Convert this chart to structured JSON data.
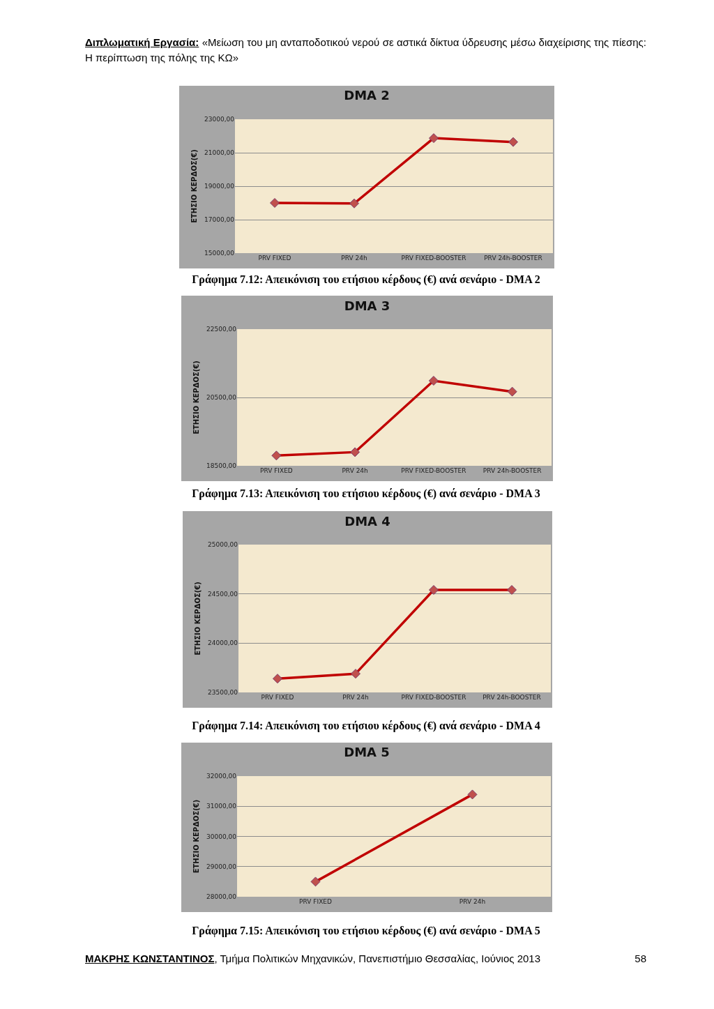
{
  "chart_data": [
    {
      "type": "line",
      "title": "DMA 2",
      "ylabel": "ΕΤΗΣΙΟ ΚΕΡΔΟΣ(€)",
      "categories": [
        "PRV FIXED",
        "PRV 24h",
        "PRV FIXED-BOOSTER",
        "PRV 24h-BOOSTER"
      ],
      "series": [
        {
          "color": "#c00000",
          "values": [
            18000,
            17970,
            21870,
            21640
          ]
        }
      ],
      "ylim": [
        15000,
        23000
      ],
      "yticks": [
        {
          "value": 15000,
          "label": "15000,00"
        },
        {
          "value": 17000,
          "label": "17000,00"
        },
        {
          "value": 19000,
          "label": "19000,00"
        },
        {
          "value": 21000,
          "label": "21000,00"
        },
        {
          "value": 23000,
          "label": "23000,00"
        }
      ],
      "grid": "y",
      "marker": "diamond",
      "line_style": "solid",
      "annotations": [
        "Διπλωματική Εργασία:",
        "«Μείωση του μη ανταποδοτικού νερού σε αστικά δίκτυα ύδρευσης μέσω διαχείρισης της πίεσης: Η περίπτωση της πόλης της ΚΩ»",
        "Γράφημα 7.12: Απεικόνιση του ετήσιου κέρδους (€) ανά σενάριο - DMA 2"
      ]
    },
    {
      "type": "line",
      "title": "DMA 3",
      "ylabel": "ΕΤΗΣΙΟ ΚΕΡΔΟΣ(€)",
      "categories": [
        "PRV FIXED",
        "PRV 24h",
        "PRV FIXED-BOOSTER",
        "PRV 24h-BOOSTER"
      ],
      "series": [
        {
          "color": "#c00000",
          "values": [
            18800,
            18900,
            20990,
            20670
          ]
        }
      ],
      "ylim": [
        18500,
        22500
      ],
      "yticks": [
        {
          "value": 18500,
          "label": "18500,00"
        },
        {
          "value": 20500,
          "label": "20500,00"
        },
        {
          "value": 22500,
          "label": "22500,00"
        }
      ],
      "grid": "y",
      "marker": "diamond",
      "line_style": "solid",
      "annotations": [
        "Γράφημα 7.13: Απεικόνιση του ετήσιου κέρδους (€) ανά σενάριο - DMA 3"
      ]
    },
    {
      "type": "line",
      "title": "DMA 4",
      "ylabel": "ΕΤΗΣΙΟ ΚΕΡΔΟΣ(€)",
      "categories": [
        "PRV FIXED",
        "PRV 24h",
        "PRV FIXED-BOOSTER",
        "PRV 24h-BOOSTER"
      ],
      "series": [
        {
          "color": "#c00000",
          "values": [
            23640,
            23690,
            24540,
            24540
          ]
        }
      ],
      "ylim": [
        23500,
        25000
      ],
      "yticks": [
        {
          "value": 23500,
          "label": "23500,00"
        },
        {
          "value": 24000,
          "label": "24000,00"
        },
        {
          "value": 24500,
          "label": "24500,00"
        },
        {
          "value": 25000,
          "label": "25000,00"
        }
      ],
      "grid": "y",
      "marker": "diamond",
      "line_style": "solid",
      "annotations": [
        "Γράφημα 7.14: Απεικόνιση του ετήσιου κέρδους (€) ανά σενάριο - DMA 4"
      ]
    },
    {
      "type": "line",
      "title": "DMA 5",
      "ylabel": "ΕΤΗΣΙΟ ΚΕΡΔΟΣ(€)",
      "categories": [
        "PRV FIXED",
        "PRV 24h"
      ],
      "series": [
        {
          "color": "#c00000",
          "values": [
            28500,
            31390
          ]
        }
      ],
      "ylim": [
        28000,
        32000
      ],
      "yticks": [
        {
          "value": 28000,
          "label": "28000,00"
        },
        {
          "value": 29000,
          "label": "29000,00"
        },
        {
          "value": 30000,
          "label": "30000,00"
        },
        {
          "value": 31000,
          "label": "31000,00"
        },
        {
          "value": 32000,
          "label": "32000,00"
        }
      ],
      "grid": "y",
      "marker": "diamond",
      "line_style": "solid",
      "annotations": [
        "Γράφημα 7.15: Απεικόνιση του ετήσιου κέρδους (€) ανά σενάριο - DMA 5",
        "ΜΑΚΡΗΣ ΚΩΝΣΤΑΝΤΙΝΟΣ",
        ", Τμήμα Πολιτικών Μηχανικών, Πανεπιστήμιο Θεσσαλίας, Ιούνιος 2013",
        "58"
      ]
    }
  ]
}
